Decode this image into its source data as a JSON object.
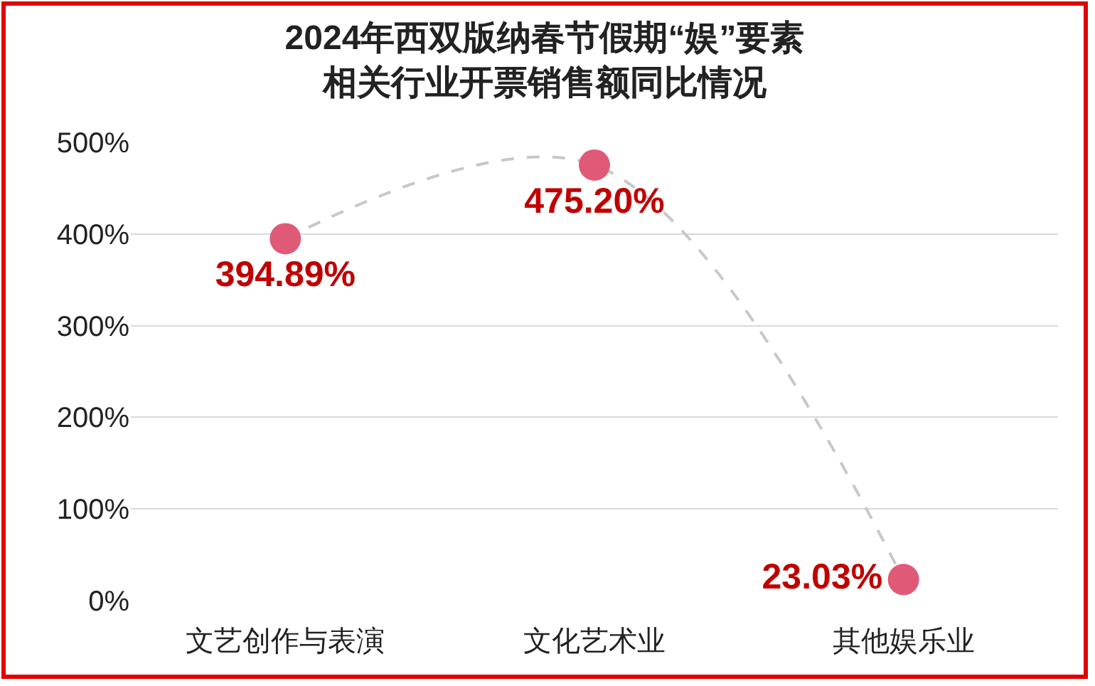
{
  "chart_data": {
    "type": "line",
    "title": "2024年西双版纳春节假期“娱”要素",
    "subtitle": "相关行业开票销售额同比情况",
    "categories": [
      "文艺创作与表演",
      "文化艺术业",
      "其他娱乐业"
    ],
    "series": [
      {
        "color": "#e05a78",
        "values": [
          394.89,
          475.2,
          23.03
        ],
        "value_labels": [
          "394.89%",
          "475.20%",
          "23.03%"
        ]
      }
    ],
    "ylim": [
      0,
      500
    ],
    "yticks": [
      {
        "value": 0,
        "label": "0%"
      },
      {
        "value": 100,
        "label": "100%"
      },
      {
        "value": 200,
        "label": "200%"
      },
      {
        "value": 300,
        "label": "300%"
      },
      {
        "value": 400,
        "label": "400%"
      },
      {
        "value": 500,
        "label": "500%"
      }
    ],
    "grid": "y",
    "marker": "circle",
    "line_style": "dashed"
  }
}
